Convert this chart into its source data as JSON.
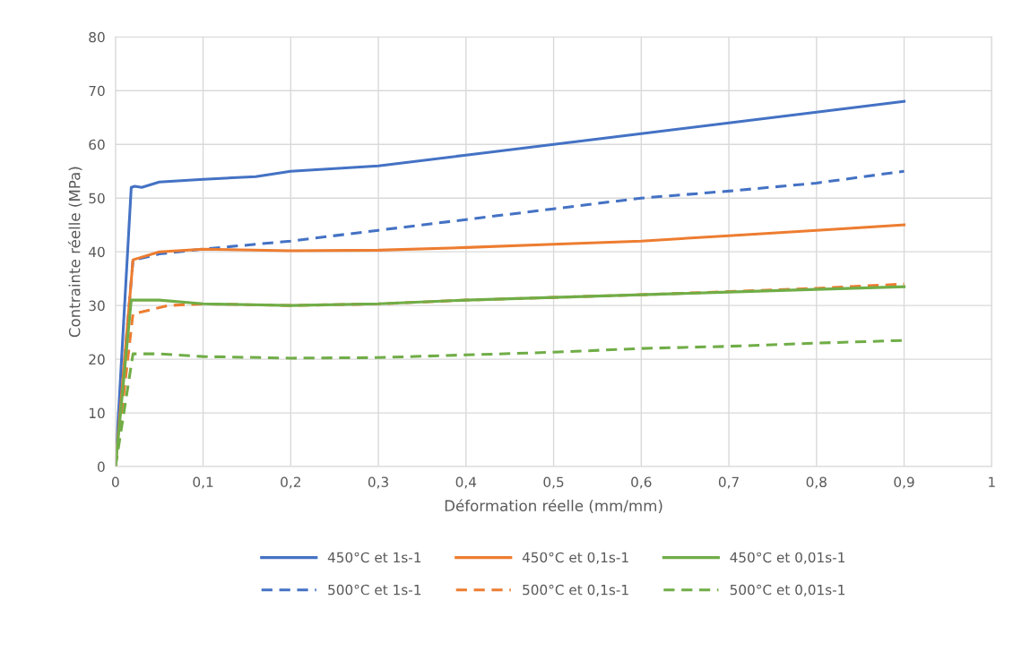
{
  "chart_data": {
    "type": "line",
    "xlabel": "Déformation réelle (mm/mm)",
    "ylabel": "Contrainte réelle (MPa)",
    "xlim": [
      0,
      1
    ],
    "ylim": [
      0,
      80
    ],
    "xticks": [
      0,
      {
        "value": 0.1,
        "label": "0,1"
      },
      {
        "value": 0.2,
        "label": "0,2"
      },
      {
        "value": 0.3,
        "label": "0,3"
      },
      {
        "value": 0.4,
        "label": "0,4"
      },
      {
        "value": 0.5,
        "label": "0,5"
      },
      {
        "value": 0.6,
        "label": "0,6"
      },
      {
        "value": 0.7,
        "label": "0,7"
      },
      {
        "value": 0.8,
        "label": "0,8"
      },
      {
        "value": 0.9,
        "label": "0,9"
      },
      1
    ],
    "yticks": [
      0,
      10,
      20,
      30,
      40,
      50,
      60,
      70,
      80
    ],
    "grid": true,
    "legend": "bottom",
    "marker": "none",
    "series": [
      {
        "name": "450°C et 1s-1",
        "color": "#4472c4",
        "line_style": "solid",
        "x": [
          0,
          0.018,
          0.022,
          0.03,
          0.05,
          0.1,
          0.16,
          0.2,
          0.3,
          0.4,
          0.5,
          0.6,
          0.7,
          0.8,
          0.9
        ],
        "values": [
          0,
          52,
          52.2,
          52,
          53,
          53.5,
          54,
          55,
          56,
          58,
          60,
          62,
          64,
          66,
          68
        ]
      },
      {
        "name": "500°C et 1s-1",
        "color": "#4472c4",
        "line_style": "dashed",
        "x": [
          0,
          0.02,
          0.03,
          0.05,
          0.1,
          0.2,
          0.3,
          0.4,
          0.5,
          0.6,
          0.7,
          0.8,
          0.9
        ],
        "values": [
          0,
          38.5,
          38.8,
          39.6,
          40.5,
          42,
          44,
          46,
          48,
          50,
          51.3,
          52.8,
          55
        ]
      },
      {
        "name": "450°C et 0,1s-1",
        "color": "#ed7d31",
        "line_style": "solid",
        "x": [
          0,
          0.02,
          0.05,
          0.1,
          0.2,
          0.3,
          0.4,
          0.5,
          0.6,
          0.7,
          0.8,
          0.9
        ],
        "values": [
          0,
          38.5,
          40,
          40.5,
          40.2,
          40.3,
          40.8,
          41.4,
          42,
          43,
          44,
          45
        ]
      },
      {
        "name": "500°C et 0,1s-1",
        "color": "#ed7d31",
        "line_style": "dashed",
        "x": [
          0,
          0.02,
          0.03,
          0.06,
          0.1,
          0.2,
          0.3,
          0.4,
          0.5,
          0.6,
          0.7,
          0.8,
          0.9
        ],
        "values": [
          0,
          28.5,
          28.8,
          30,
          30.3,
          30,
          30.3,
          31,
          31.5,
          32,
          32.6,
          33.2,
          34
        ]
      },
      {
        "name": "450°C et 0,01s-1",
        "color": "#70ad47",
        "line_style": "solid",
        "x": [
          0,
          0.018,
          0.05,
          0.1,
          0.2,
          0.3,
          0.4,
          0.5,
          0.6,
          0.7,
          0.8,
          0.9
        ],
        "values": [
          0,
          31,
          31,
          30.3,
          30,
          30.3,
          31,
          31.5,
          32,
          32.5,
          33,
          33.5
        ]
      },
      {
        "name": "500°C et 0,01s-1",
        "color": "#70ad47",
        "line_style": "dashed",
        "x": [
          0,
          0.02,
          0.05,
          0.1,
          0.2,
          0.3,
          0.4,
          0.5,
          0.6,
          0.7,
          0.8,
          0.9
        ],
        "values": [
          0,
          21,
          21,
          20.5,
          20.2,
          20.3,
          20.8,
          21.3,
          22,
          22.4,
          23,
          23.5
        ]
      }
    ]
  }
}
